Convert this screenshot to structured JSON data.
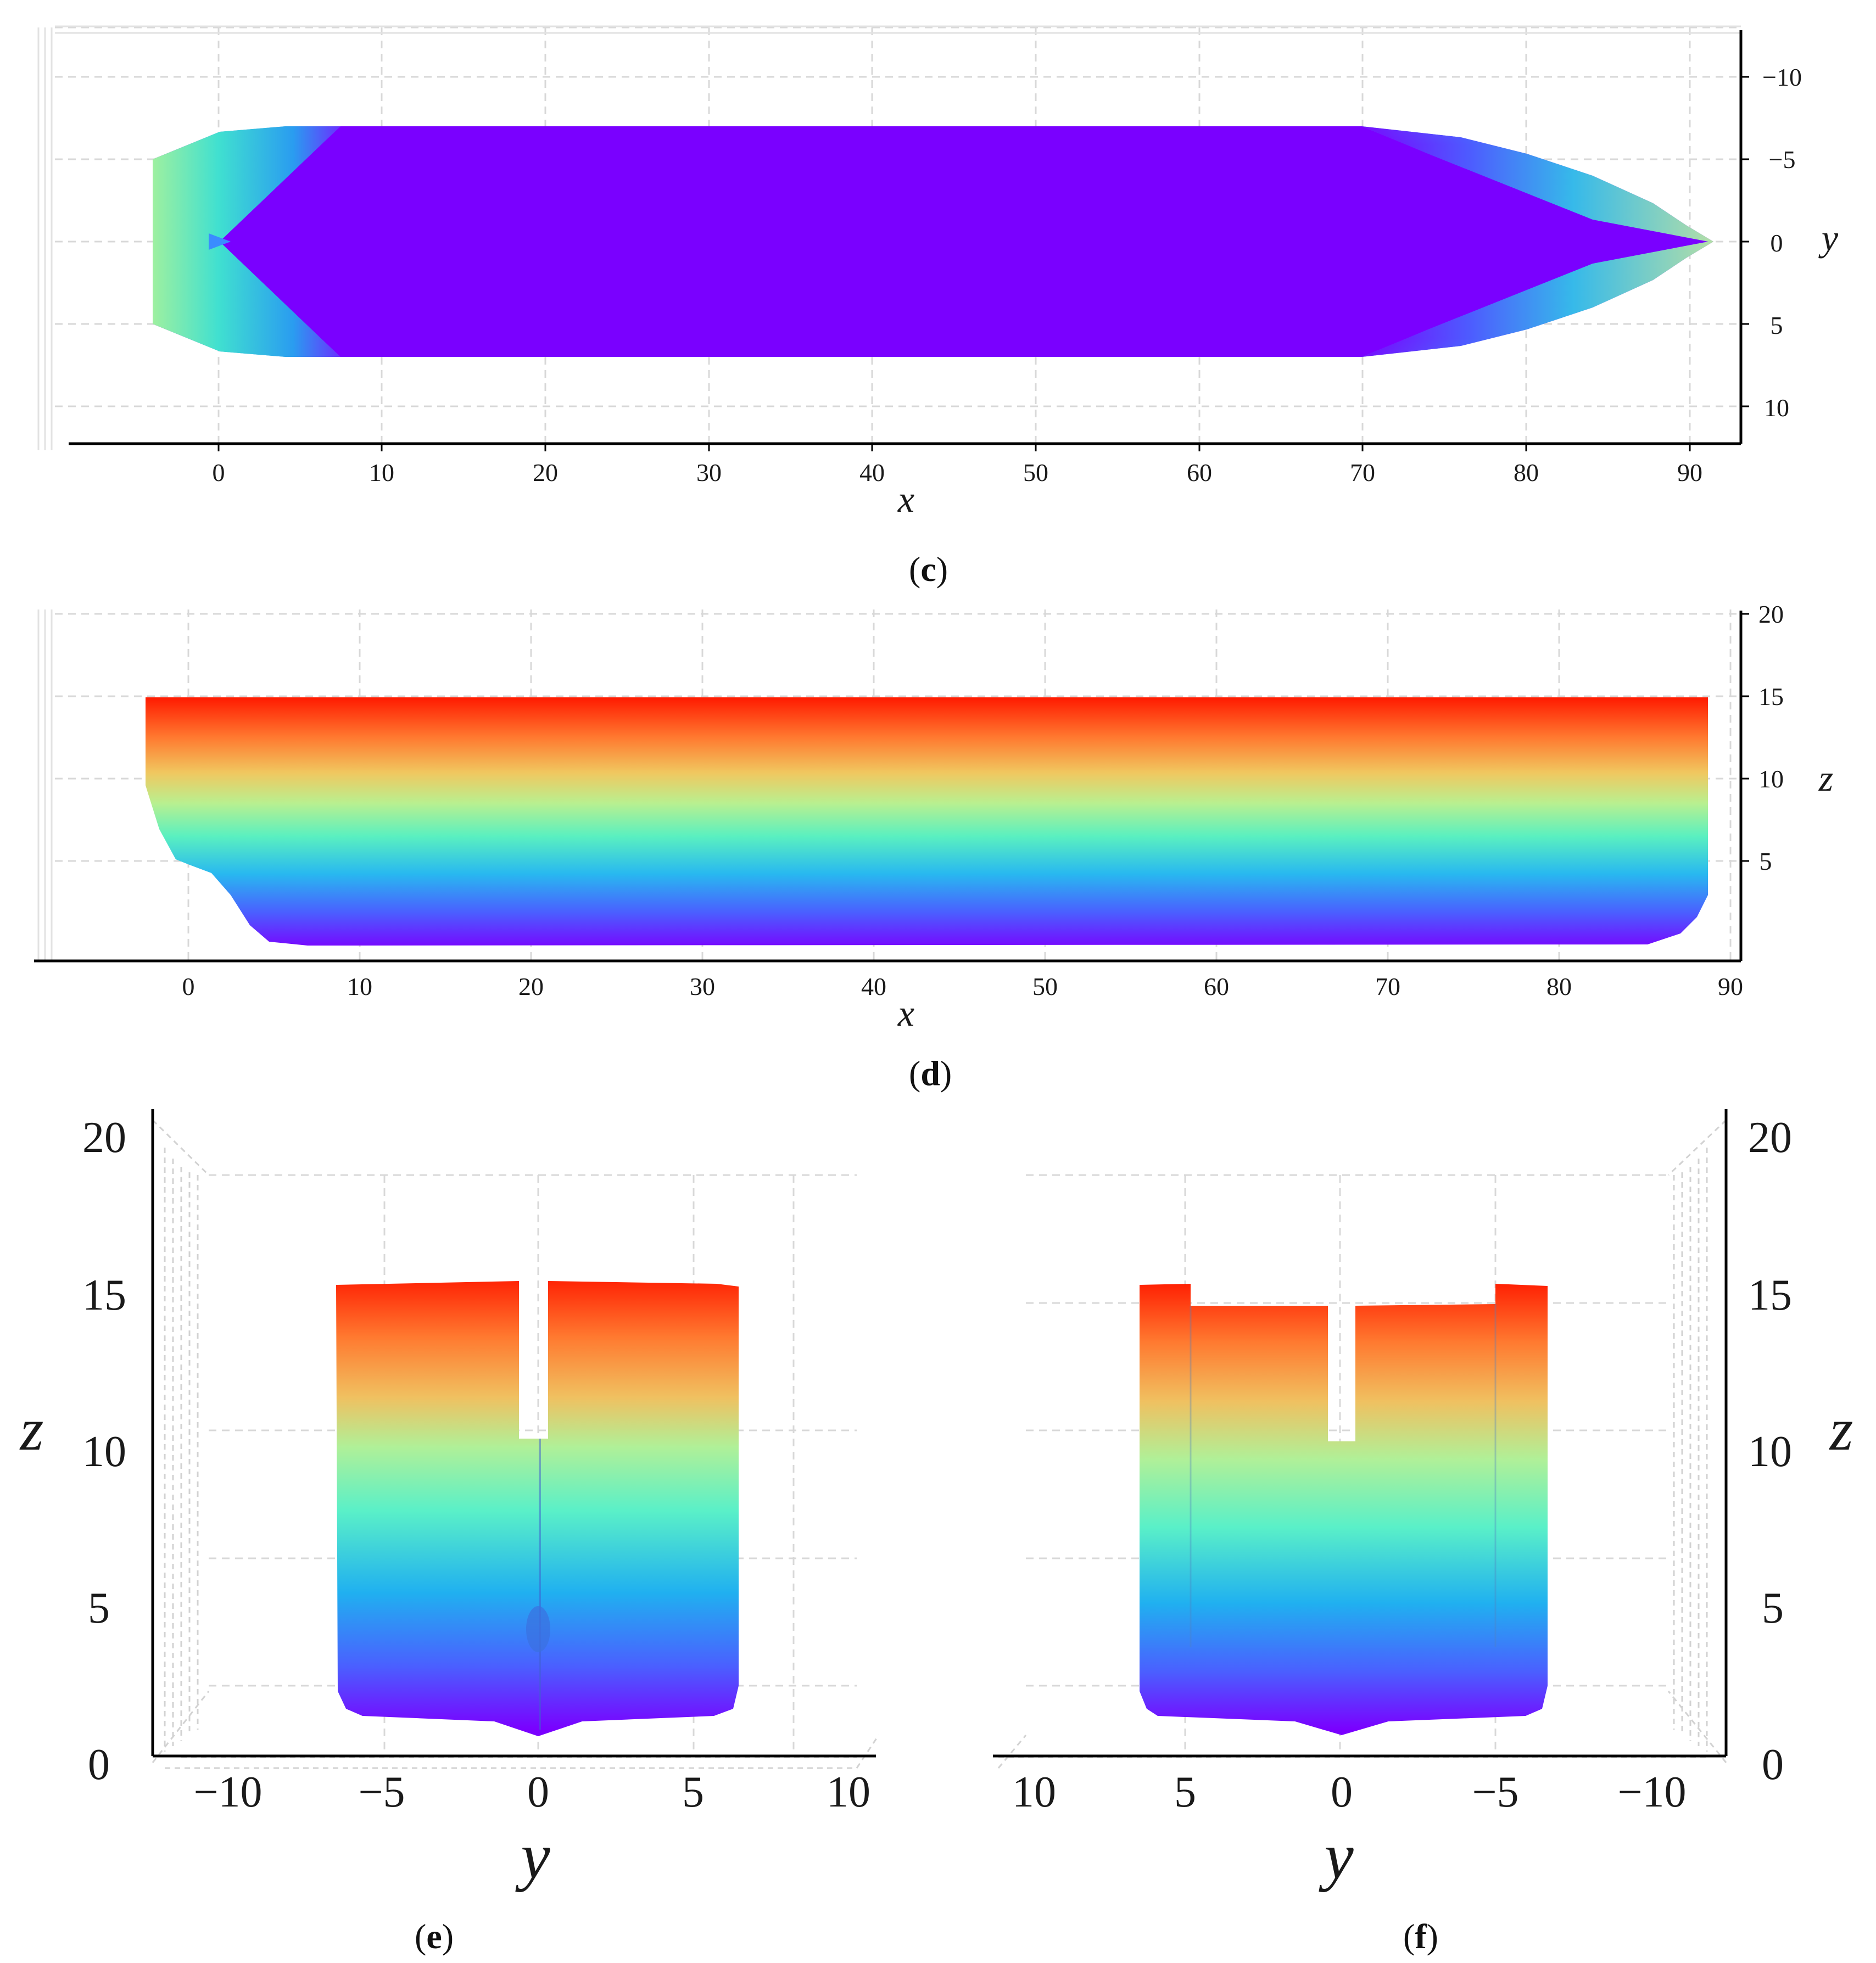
{
  "chart_data": [
    {
      "panel": "c",
      "type": "heatmap",
      "caption": {
        "open": "(",
        "letter": "c",
        "close": ")"
      },
      "xlabel": "x",
      "ylabel": "y",
      "x_ticks": [
        "0",
        "10",
        "20",
        "30",
        "40",
        "50",
        "60",
        "70",
        "80",
        "90"
      ],
      "y_ticks": [
        "−10",
        "−5",
        "0",
        "5",
        "10"
      ],
      "xlim": [
        -9,
        93
      ],
      "ylim": [
        -12.5,
        12.5
      ],
      "y_inverted": true,
      "grid": true,
      "colormap": "rainbow"
    },
    {
      "panel": "d",
      "type": "heatmap",
      "caption": {
        "open": "(",
        "letter": "d",
        "close": ")"
      },
      "xlabel": "x",
      "ylabel": "z",
      "x_ticks": [
        "0",
        "10",
        "20",
        "30",
        "40",
        "50",
        "60",
        "70",
        "80",
        "90"
      ],
      "z_ticks": [
        "20",
        "15",
        "10",
        "5"
      ],
      "xlim": [
        -9,
        91
      ],
      "zlim": [
        0,
        21
      ],
      "grid": true,
      "colormap": "rainbow"
    },
    {
      "panel": "e",
      "type": "heatmap",
      "caption": {
        "open": "(",
        "letter": "e",
        "close": ")"
      },
      "xlabel": "y",
      "ylabel": "z",
      "y_ticks": [
        "−10",
        "−5",
        "0",
        "5",
        "10"
      ],
      "z_ticks": [
        "20",
        "15",
        "10",
        "5",
        "0"
      ],
      "ylim": [
        -12.5,
        11
      ],
      "zlim": [
        0,
        21
      ],
      "grid": true,
      "colormap": "rainbow"
    },
    {
      "panel": "f",
      "type": "heatmap",
      "caption": {
        "open": "(",
        "letter": "f",
        "close": ")"
      },
      "xlabel": "y",
      "ylabel": "z",
      "y_ticks": [
        "10",
        "5",
        "0",
        "−5",
        "−10"
      ],
      "z_ticks": [
        "20",
        "15",
        "10",
        "5",
        "0"
      ],
      "ylim": [
        11,
        -12.5
      ],
      "zlim": [
        0,
        21
      ],
      "grid": true,
      "colormap": "rainbow"
    }
  ],
  "colors": {
    "violet": "#7a00ff",
    "blue": "#1aa0ff",
    "cyan": "#40e6d8",
    "green": "#8ef0a0",
    "yellow": "#e8d060",
    "orange": "#ff9040",
    "red": "#ff1a00"
  }
}
